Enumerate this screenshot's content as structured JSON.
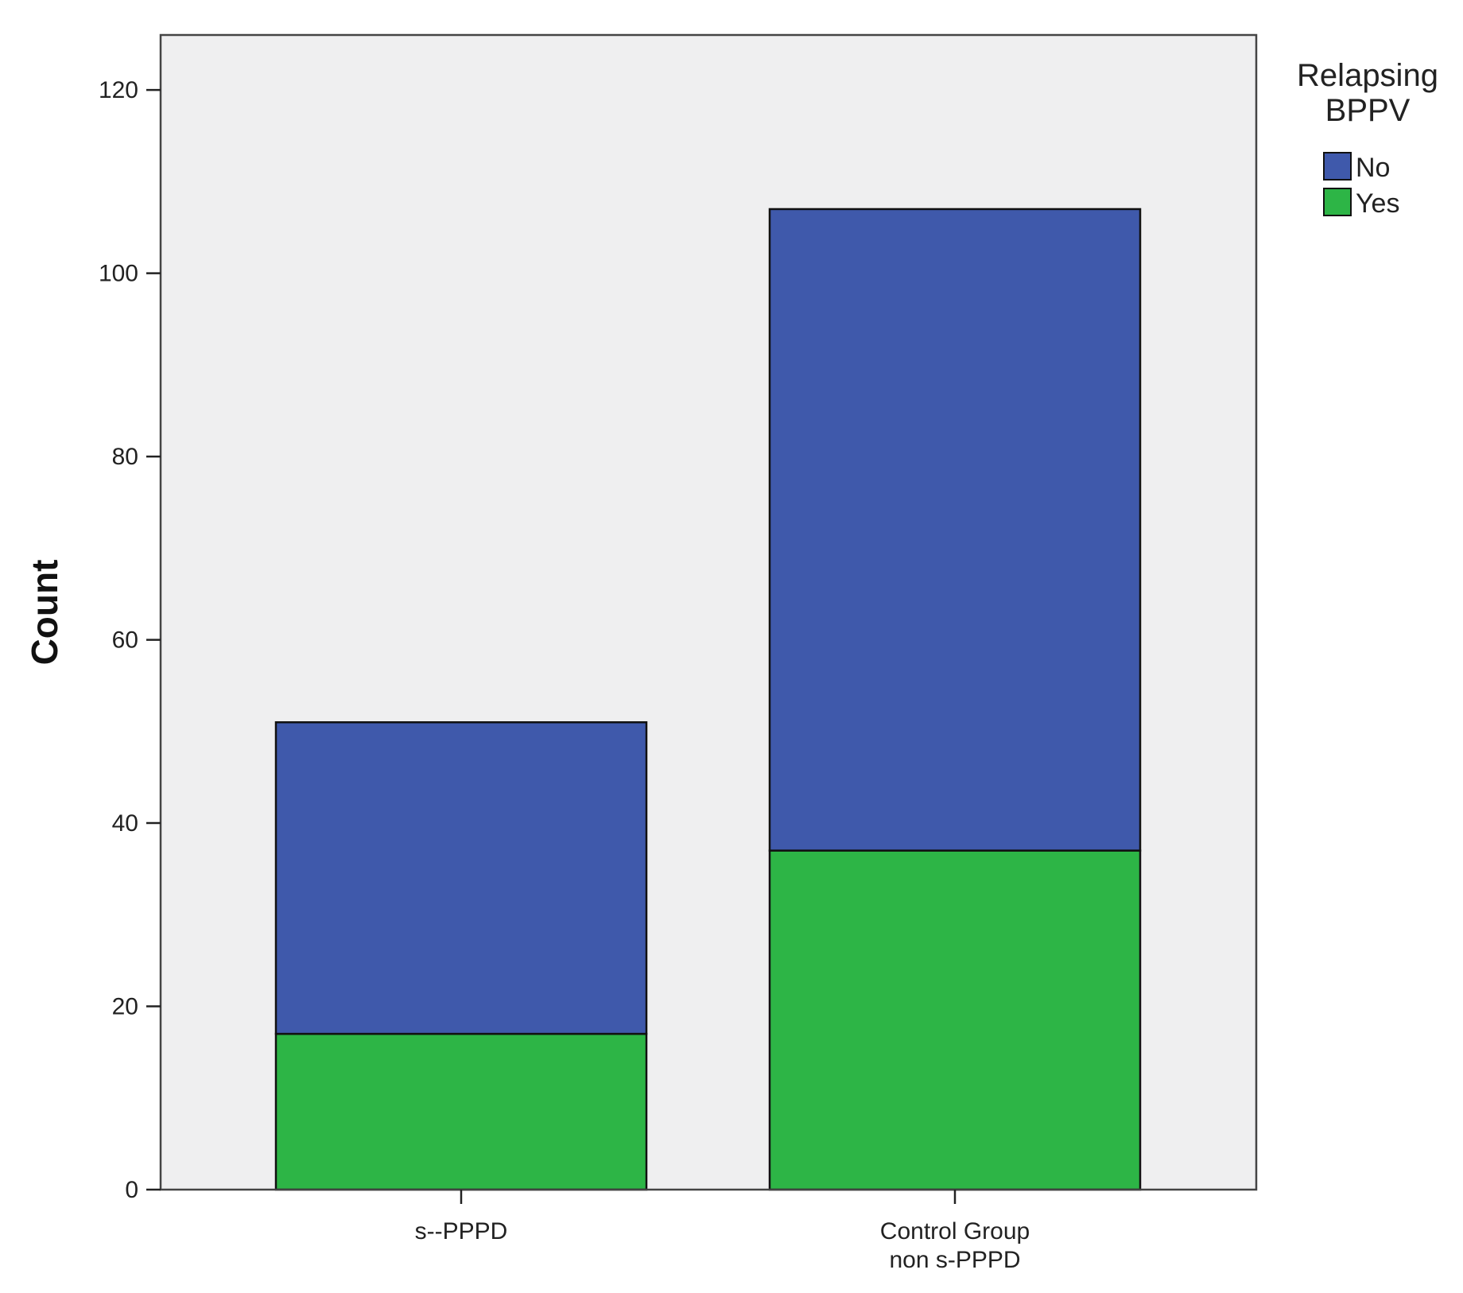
{
  "chart_data": {
    "type": "bar",
    "stacked": true,
    "title": "",
    "xlabel": "",
    "ylabel": "Count",
    "ylim": [
      0,
      126
    ],
    "yticks": [
      0,
      20,
      40,
      60,
      80,
      100,
      120
    ],
    "grid": false,
    "categories": [
      [
        "s--PPPD"
      ],
      [
        "Control Group",
        "non s-PPPD"
      ]
    ],
    "series": [
      {
        "name": "No",
        "color": "#3f59ab",
        "values": [
          34,
          70
        ]
      },
      {
        "name": "Yes",
        "color": "#2db546",
        "values": [
          17,
          37
        ]
      }
    ],
    "legend": {
      "title_lines": [
        "Relapsing",
        "BPPV"
      ],
      "position": "top-right"
    },
    "colors": {
      "plot_background": "#efeff0",
      "outline": "#111111"
    }
  }
}
